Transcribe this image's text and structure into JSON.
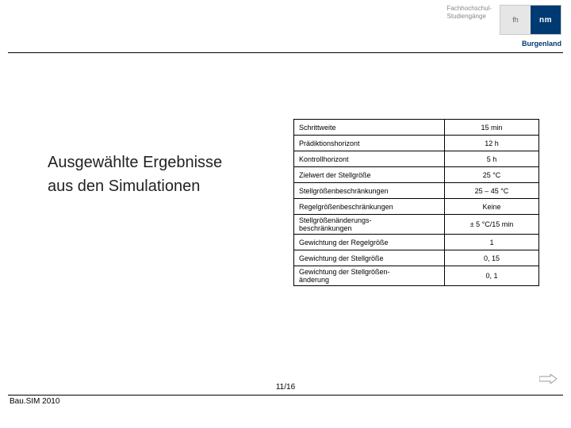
{
  "header": {
    "subtitle_line1": "Fachhochschul-",
    "subtitle_line2": "Studiengänge",
    "logo_left": "fh",
    "logo_right": "nm",
    "brand": "Burgenland"
  },
  "title": {
    "line1": "Ausgewählte Ergebnisse",
    "line2": "aus den Simulationen"
  },
  "table": {
    "rows": [
      {
        "label": "Schrittweite",
        "value": "15 min"
      },
      {
        "label": "Prädiktionshorizont",
        "value": "12 h"
      },
      {
        "label": "Kontrollhorizont",
        "value": "5 h"
      },
      {
        "label": "Zielwert der Stellgröße",
        "value": "25 °C"
      },
      {
        "label": "Stellgrößenbeschränkungen",
        "value": "25 – 45 °C"
      },
      {
        "label": "Regelgrößenbeschränkungen",
        "value": "Keine"
      },
      {
        "label": "Stellgrößenänderungs-\nbeschränkungen",
        "value": "± 5 °C/15 min"
      },
      {
        "label": "Gewichtung der Regelgröße",
        "value": "1"
      },
      {
        "label": "Gewichtung der Stellgröße",
        "value": "0, 15"
      },
      {
        "label": "Gewichtung der Stellgrößen-\nänderung",
        "value": "0, 1"
      }
    ]
  },
  "footer": {
    "left": "Bau.SIM 2010",
    "page": "11/16"
  }
}
